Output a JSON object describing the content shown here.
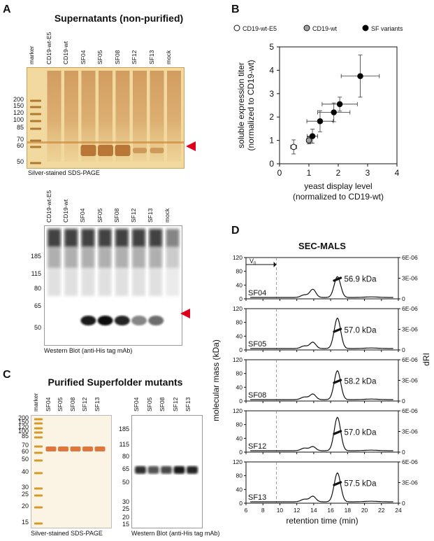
{
  "panels": {
    "A": "A",
    "B": "B",
    "C": "C",
    "D": "D"
  },
  "colors": {
    "arrow": "#e0001b",
    "silver_bg": "#f1d9a0",
    "wb_bg": "#ffffff",
    "marker": "#d49a2a",
    "purified_band": "#d96020"
  },
  "A": {
    "title": "Supernatants (non-purified)",
    "gel_lanes": [
      "marker",
      "CD19-wt-E5",
      "CD19-wt",
      "SF04",
      "SF05",
      "SF08",
      "SF12",
      "SF13",
      "mock"
    ],
    "gel_mw": [
      "200",
      "150",
      "120",
      "100",
      "85",
      "70",
      "60",
      "50"
    ],
    "gel_caption": "Silver-stained SDS-PAGE",
    "wb_lanes": [
      "CD19-wt-E5",
      "CD19-wt",
      "SF04",
      "SF05",
      "SF08",
      "SF12",
      "SF13",
      "mock"
    ],
    "wb_mw": [
      "185",
      "115",
      "80",
      "65",
      "50"
    ],
    "wb_caption": "Western Blot (anti-His tag mAb)"
  },
  "C": {
    "title": "Purified Superfolder mutants",
    "gel_lanes": [
      "marker",
      "SF04",
      "SF05",
      "SF08",
      "SF12",
      "SF13"
    ],
    "gel_mw": [
      "200",
      "150",
      "120",
      "100",
      "85",
      "70",
      "60",
      "50",
      "40",
      "30",
      "25",
      "20",
      "15"
    ],
    "gel_caption": "Silver-stained SDS-PAGE",
    "wb_lanes": [
      "SF04",
      "SF05",
      "SF08",
      "SF12",
      "SF13"
    ],
    "wb_mw": [
      "185",
      "115",
      "80",
      "65",
      "50",
      "30",
      "25",
      "20",
      "15"
    ],
    "wb_caption": "Western Blot (anti-His tag mAb)"
  },
  "chart_data": [
    {
      "type": "scatter",
      "panel": "B",
      "xlabel": [
        "yeast display level",
        "(normalized to CD19-wt)"
      ],
      "ylabel": [
        "soluble expression titer",
        "(normalized to CD19-wt)"
      ],
      "xlim": [
        0,
        4
      ],
      "ylim": [
        0,
        5
      ],
      "xticks": [
        "0",
        "1",
        "2",
        "3",
        "4"
      ],
      "yticks": [
        "0",
        "1",
        "2",
        "3",
        "4",
        "5"
      ],
      "legend": [
        "CD19-wt-E5",
        "CD19-wt",
        "SF variants"
      ],
      "series": [
        {
          "name": "CD19-wt-E5",
          "fill": "#ffffff",
          "points": [
            {
              "x": 0.48,
              "y": 0.72,
              "xerr": 0.1,
              "yerr": 0.3
            }
          ]
        },
        {
          "name": "CD19-wt",
          "fill": "#a0a0a0",
          "points": [
            {
              "x": 1.0,
              "y": 1.0,
              "xerr": 0.08,
              "yerr": 0.15
            }
          ]
        },
        {
          "name": "SF variants",
          "fill": "#000000",
          "points": [
            {
              "x": 1.12,
              "y": 1.18,
              "xerr": 0.18,
              "yerr": 0.3
            },
            {
              "x": 1.38,
              "y": 1.82,
              "xerr": 0.45,
              "yerr": 0.45
            },
            {
              "x": 1.85,
              "y": 2.2,
              "xerr": 0.55,
              "yerr": 0.4
            },
            {
              "x": 2.05,
              "y": 2.55,
              "xerr": 0.6,
              "yerr": 0.3
            },
            {
              "x": 2.75,
              "y": 3.75,
              "xerr": 0.65,
              "yerr": 0.9
            }
          ]
        }
      ]
    },
    {
      "type": "line",
      "panel": "D",
      "title": "SEC-MALS",
      "xlabel": "retention time (min)",
      "ylabel_left": "molecular mass (kDa)",
      "ylabel_right": "dRI",
      "xlim": [
        6,
        24
      ],
      "xticks": [
        "6",
        "8",
        "10",
        "12",
        "14",
        "16",
        "18",
        "20",
        "22",
        "24"
      ],
      "ylim_left": [
        0,
        120
      ],
      "yticks_left": [
        "0",
        "40",
        "80",
        "120"
      ],
      "yticks_right": [
        "0",
        "3E-06",
        "6E-06"
      ],
      "v0_label": "V",
      "v0_sub": "0",
      "v0_x": 9.6,
      "samples": [
        {
          "name": "SF04",
          "mass": "56.9 kDa",
          "peak_height": 0.56,
          "shoulder": 0.22
        },
        {
          "name": "SF05",
          "mass": "57.0 kDa",
          "peak_height": 0.82,
          "shoulder": 0.17
        },
        {
          "name": "SF08",
          "mass": "58.2 kDa",
          "peak_height": 0.78,
          "shoulder": 0.15
        },
        {
          "name": "SF12",
          "mass": "57.0 kDa",
          "peak_height": 0.9,
          "shoulder": 0.11
        },
        {
          "name": "SF13",
          "mass": "57.5 kDa",
          "peak_height": 0.78,
          "shoulder": 0.15
        }
      ]
    }
  ]
}
